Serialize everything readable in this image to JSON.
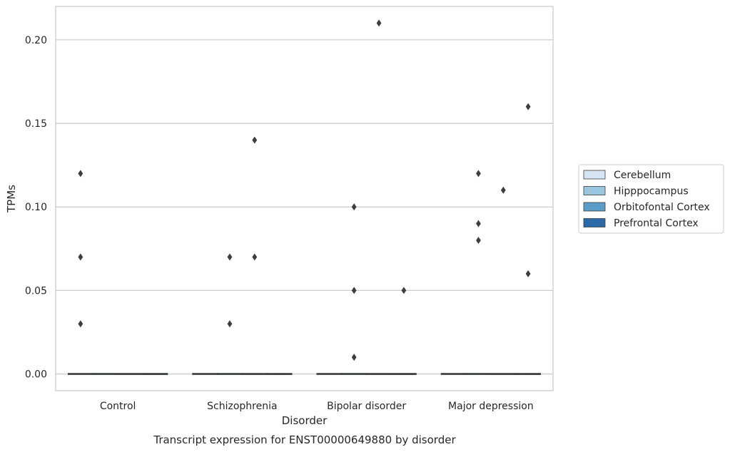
{
  "chart_data": {
    "type": "boxplot",
    "title": "Transcript expression for ENST00000649880 by disorder",
    "xlabel": "Disorder",
    "ylabel": "TPMs",
    "categories": [
      "Control",
      "Schizophrenia",
      "Bipolar disorder",
      "Major depression"
    ],
    "ylim": [
      -0.01,
      0.22
    ],
    "yticks": [
      0.0,
      0.05,
      0.1,
      0.15,
      0.2
    ],
    "ytick_labels": [
      "0.00",
      "0.05",
      "0.10",
      "0.15",
      "0.20"
    ],
    "grid": "horizontal",
    "legend_position": "right",
    "series": [
      {
        "name": "Cerebellum",
        "color": "#d6e5f3",
        "median": [
          0,
          0,
          0,
          0
        ],
        "outliers": [
          [
            0.12,
            0.07,
            0.03
          ],
          [],
          [],
          []
        ]
      },
      {
        "name": "Hipppocampus",
        "color": "#9ac7e0",
        "median": [
          0,
          0,
          0,
          0
        ],
        "outliers": [
          [],
          [
            0.07,
            0.03
          ],
          [
            0.1,
            0.05,
            0.01
          ],
          [
            0.12,
            0.09,
            0.08
          ]
        ]
      },
      {
        "name": "Orbitofontal Cortex",
        "color": "#5a9dc9",
        "median": [
          0,
          0,
          0,
          0
        ],
        "outliers": [
          [],
          [
            0.14,
            0.07
          ],
          [
            0.21
          ],
          [
            0.11
          ]
        ]
      },
      {
        "name": "Prefrontal Cortex",
        "color": "#2a6aa8",
        "median": [
          0,
          0,
          0,
          0
        ],
        "outliers": [
          [],
          [],
          [
            0.05
          ],
          [
            0.16,
            0.06
          ]
        ]
      }
    ],
    "series_offsets": [
      -0.3,
      -0.1,
      0.1,
      0.3
    ]
  }
}
